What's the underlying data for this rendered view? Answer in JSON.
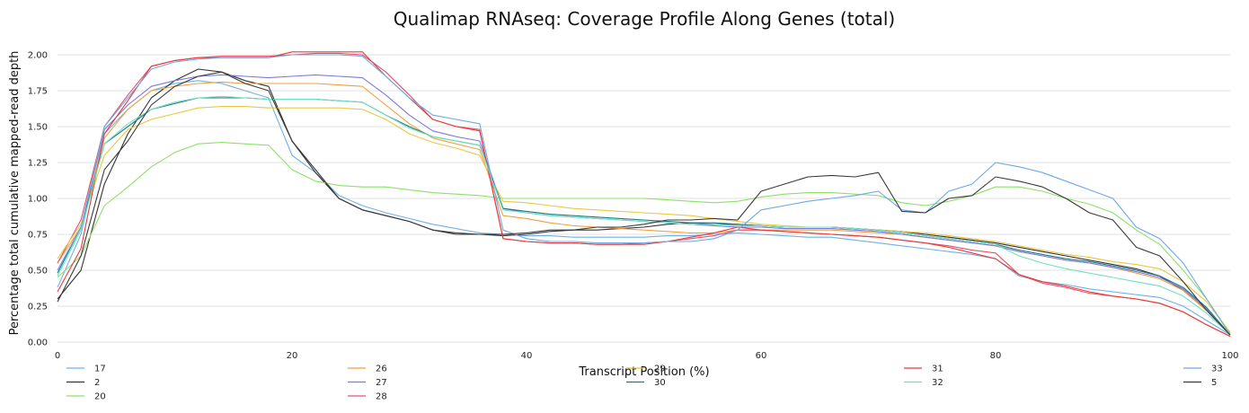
{
  "chart_data": {
    "type": "line",
    "title": "Qualimap RNAseq: Coverage Profile Along Genes (total)",
    "xlabel": "Transcript Position (%)",
    "ylabel": "Percentage total cumulative mapped-read depth",
    "xlim": [
      0,
      100
    ],
    "ylim": [
      0,
      2.1
    ],
    "xticks": [
      "0",
      "20",
      "40",
      "60",
      "80",
      "100"
    ],
    "yticks": [
      "0.00",
      "0.25",
      "0.50",
      "0.75",
      "1.00",
      "1.25",
      "1.50",
      "1.75",
      "2.00"
    ],
    "grid": "horizontal",
    "legend_position": "bottom",
    "x": [
      0,
      2,
      4,
      6,
      8,
      10,
      12,
      14,
      16,
      18,
      20,
      22,
      24,
      26,
      28,
      30,
      32,
      34,
      36,
      38,
      40,
      42,
      44,
      46,
      48,
      50,
      52,
      54,
      56,
      58,
      60,
      62,
      64,
      66,
      68,
      70,
      72,
      74,
      76,
      78,
      80,
      82,
      84,
      86,
      88,
      90,
      92,
      94,
      96,
      98,
      100
    ],
    "series": [
      {
        "name": "17",
        "color": "#6fb0e8",
        "values": [
          0.38,
          0.75,
          1.45,
          1.62,
          1.75,
          1.8,
          1.82,
          1.8,
          1.75,
          1.7,
          1.3,
          1.18,
          1.02,
          0.95,
          0.9,
          0.86,
          0.82,
          0.79,
          0.76,
          0.75,
          0.74,
          0.74,
          0.73,
          0.73,
          0.73,
          0.73,
          0.74,
          0.74,
          0.75,
          0.76,
          0.75,
          0.74,
          0.73,
          0.73,
          0.71,
          0.69,
          0.67,
          0.65,
          0.63,
          0.61,
          0.58,
          0.46,
          0.42,
          0.4,
          0.37,
          0.35,
          0.33,
          0.31,
          0.25,
          0.15,
          0.05
        ]
      },
      {
        "name": "2",
        "color": "#333333",
        "values": [
          0.3,
          0.5,
          1.1,
          1.45,
          1.7,
          1.82,
          1.9,
          1.88,
          1.82,
          1.78,
          1.4,
          1.18,
          1.0,
          0.92,
          0.88,
          0.84,
          0.78,
          0.75,
          0.75,
          0.74,
          0.75,
          0.77,
          0.78,
          0.78,
          0.79,
          0.8,
          0.82,
          0.83,
          0.82,
          0.82,
          0.81,
          0.8,
          0.8,
          0.8,
          0.79,
          0.78,
          0.77,
          0.75,
          0.73,
          0.71,
          0.69,
          0.66,
          0.63,
          0.6,
          0.57,
          0.54,
          0.51,
          0.46,
          0.36,
          0.22,
          0.05
        ]
      },
      {
        "name": "20",
        "color": "#8ee06a",
        "values": [
          0.45,
          0.6,
          0.95,
          1.08,
          1.22,
          1.32,
          1.38,
          1.39,
          1.38,
          1.37,
          1.2,
          1.12,
          1.09,
          1.08,
          1.08,
          1.06,
          1.04,
          1.03,
          1.02,
          1.0,
          1.0,
          1.0,
          1.0,
          1.0,
          1.0,
          1.0,
          0.99,
          0.98,
          0.97,
          0.98,
          1.01,
          1.03,
          1.04,
          1.04,
          1.03,
          1.02,
          0.97,
          0.95,
          0.98,
          1.02,
          1.08,
          1.08,
          1.05,
          1.0,
          0.96,
          0.9,
          0.78,
          0.68,
          0.5,
          0.3,
          0.06
        ]
      },
      {
        "name": "26",
        "color": "#f0a040",
        "values": [
          0.55,
          0.8,
          1.42,
          1.62,
          1.75,
          1.78,
          1.8,
          1.81,
          1.8,
          1.8,
          1.8,
          1.8,
          1.79,
          1.78,
          1.65,
          1.52,
          1.42,
          1.38,
          1.34,
          0.88,
          0.86,
          0.83,
          0.81,
          0.8,
          0.79,
          0.78,
          0.77,
          0.76,
          0.76,
          0.78,
          0.78,
          0.78,
          0.78,
          0.78,
          0.77,
          0.76,
          0.75,
          0.73,
          0.71,
          0.69,
          0.67,
          0.63,
          0.6,
          0.57,
          0.55,
          0.52,
          0.48,
          0.44,
          0.36,
          0.22,
          0.05
        ]
      },
      {
        "name": "27",
        "color": "#7b7ae0",
        "values": [
          0.5,
          0.8,
          1.48,
          1.65,
          1.78,
          1.82,
          1.85,
          1.86,
          1.85,
          1.84,
          1.85,
          1.86,
          1.85,
          1.84,
          1.72,
          1.58,
          1.47,
          1.43,
          1.4,
          0.93,
          0.9,
          0.88,
          0.87,
          0.86,
          0.85,
          0.84,
          0.83,
          0.82,
          0.81,
          0.8,
          0.8,
          0.79,
          0.79,
          0.79,
          0.78,
          0.77,
          0.75,
          0.73,
          0.71,
          0.69,
          0.67,
          0.63,
          0.6,
          0.57,
          0.55,
          0.52,
          0.49,
          0.45,
          0.37,
          0.23,
          0.05
        ]
      },
      {
        "name": "28",
        "color": "#e8506a",
        "values": [
          0.55,
          0.85,
          1.5,
          1.72,
          1.92,
          1.96,
          1.98,
          1.99,
          1.99,
          1.99,
          2.0,
          2.01,
          2.01,
          2.0,
          1.88,
          1.72,
          1.55,
          1.5,
          1.48,
          0.72,
          0.7,
          0.69,
          0.69,
          0.68,
          0.68,
          0.69,
          0.7,
          0.72,
          0.74,
          0.78,
          0.78,
          0.77,
          0.76,
          0.75,
          0.74,
          0.73,
          0.71,
          0.69,
          0.67,
          0.64,
          0.62,
          0.47,
          0.41,
          0.38,
          0.34,
          0.32,
          0.3,
          0.27,
          0.21,
          0.12,
          0.04
        ]
      },
      {
        "name": "29",
        "color": "#e8c840",
        "values": [
          0.58,
          0.82,
          1.3,
          1.48,
          1.55,
          1.59,
          1.63,
          1.64,
          1.64,
          1.63,
          1.63,
          1.63,
          1.63,
          1.62,
          1.55,
          1.45,
          1.39,
          1.35,
          1.3,
          0.98,
          0.97,
          0.95,
          0.93,
          0.92,
          0.91,
          0.9,
          0.89,
          0.88,
          0.86,
          0.84,
          0.82,
          0.81,
          0.8,
          0.8,
          0.79,
          0.78,
          0.77,
          0.76,
          0.74,
          0.72,
          0.7,
          0.67,
          0.64,
          0.61,
          0.59,
          0.56,
          0.54,
          0.51,
          0.42,
          0.28,
          0.07
        ]
      },
      {
        "name": "30",
        "color": "#1e7a80",
        "values": [
          0.48,
          0.8,
          1.38,
          1.5,
          1.62,
          1.66,
          1.7,
          1.7,
          1.7,
          1.69,
          1.69,
          1.69,
          1.68,
          1.67,
          1.58,
          1.5,
          1.43,
          1.4,
          1.37,
          0.93,
          0.91,
          0.89,
          0.88,
          0.87,
          0.86,
          0.85,
          0.84,
          0.83,
          0.83,
          0.82,
          0.81,
          0.8,
          0.8,
          0.8,
          0.79,
          0.78,
          0.76,
          0.74,
          0.72,
          0.7,
          0.68,
          0.64,
          0.61,
          0.58,
          0.56,
          0.53,
          0.5,
          0.46,
          0.38,
          0.24,
          0.05
        ]
      },
      {
        "name": "31",
        "color": "#e83a3a",
        "values": [
          0.35,
          0.65,
          1.45,
          1.68,
          1.92,
          1.96,
          1.98,
          1.98,
          1.98,
          1.98,
          2.02,
          2.02,
          2.02,
          2.02,
          1.85,
          1.7,
          1.55,
          1.5,
          1.47,
          0.72,
          0.7,
          0.69,
          0.69,
          0.68,
          0.68,
          0.68,
          0.7,
          0.73,
          0.76,
          0.8,
          0.78,
          0.77,
          0.76,
          0.75,
          0.74,
          0.73,
          0.71,
          0.69,
          0.66,
          0.62,
          0.58,
          0.47,
          0.42,
          0.39,
          0.35,
          0.32,
          0.3,
          0.27,
          0.21,
          0.12,
          0.04
        ]
      },
      {
        "name": "32",
        "color": "#70e0c0",
        "values": [
          0.46,
          0.78,
          1.38,
          1.52,
          1.62,
          1.67,
          1.7,
          1.71,
          1.7,
          1.69,
          1.69,
          1.69,
          1.68,
          1.67,
          1.58,
          1.49,
          1.43,
          1.4,
          1.37,
          0.92,
          0.9,
          0.88,
          0.87,
          0.86,
          0.85,
          0.84,
          0.83,
          0.82,
          0.82,
          0.81,
          0.81,
          0.8,
          0.8,
          0.8,
          0.79,
          0.78,
          0.76,
          0.74,
          0.72,
          0.7,
          0.68,
          0.6,
          0.55,
          0.51,
          0.48,
          0.45,
          0.42,
          0.39,
          0.32,
          0.2,
          0.05
        ]
      },
      {
        "name": "33",
        "color": "#6aa8e8",
        "values": [
          0.5,
          0.8,
          1.5,
          1.7,
          1.9,
          1.95,
          1.97,
          1.98,
          1.98,
          1.98,
          2.0,
          2.0,
          2.0,
          1.99,
          1.85,
          1.7,
          1.58,
          1.55,
          1.52,
          0.78,
          0.72,
          0.7,
          0.7,
          0.69,
          0.69,
          0.69,
          0.7,
          0.7,
          0.72,
          0.78,
          0.92,
          0.95,
          0.98,
          1.0,
          1.02,
          1.05,
          0.92,
          0.9,
          1.05,
          1.1,
          1.25,
          1.22,
          1.18,
          1.12,
          1.06,
          1.0,
          0.8,
          0.72,
          0.55,
          0.3,
          0.05
        ]
      },
      {
        "name": "5",
        "color": "#3a3a3a",
        "values": [
          0.28,
          0.6,
          1.2,
          1.4,
          1.65,
          1.78,
          1.85,
          1.88,
          1.8,
          1.75,
          1.4,
          1.2,
          1.0,
          0.92,
          0.88,
          0.84,
          0.78,
          0.76,
          0.75,
          0.75,
          0.76,
          0.78,
          0.78,
          0.8,
          0.8,
          0.82,
          0.85,
          0.85,
          0.86,
          0.85,
          1.05,
          1.1,
          1.15,
          1.16,
          1.15,
          1.18,
          0.91,
          0.9,
          1.0,
          1.02,
          1.15,
          1.12,
          1.08,
          1.0,
          0.9,
          0.85,
          0.66,
          0.6,
          0.42,
          0.22,
          0.05
        ]
      }
    ]
  }
}
